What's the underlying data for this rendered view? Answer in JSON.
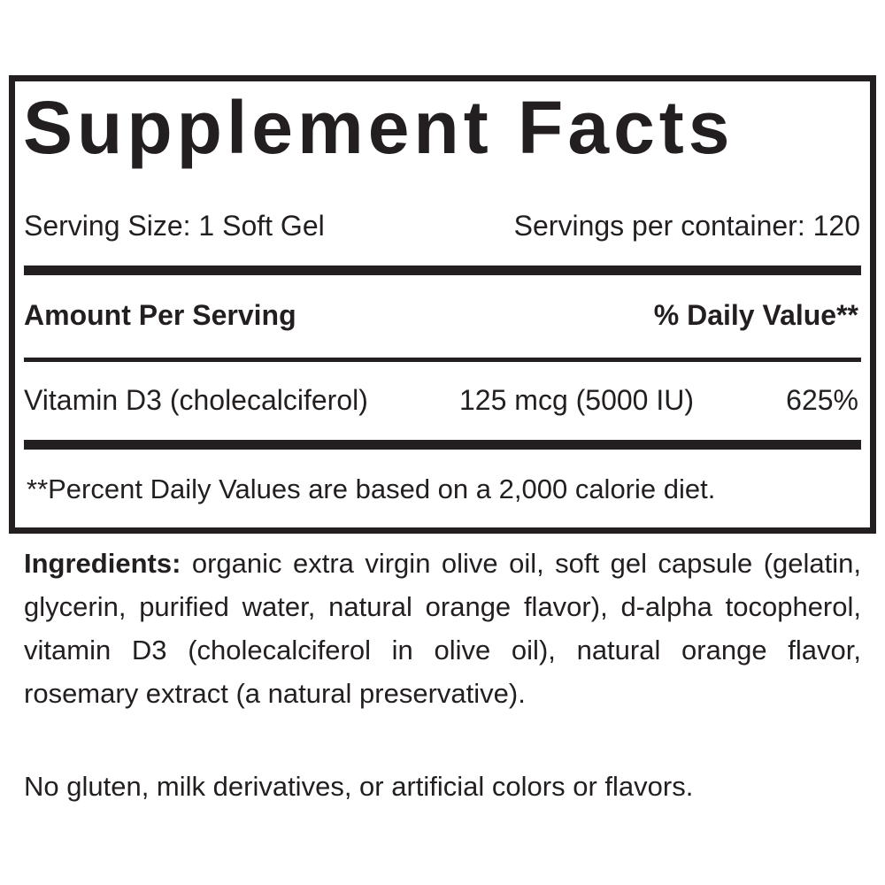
{
  "label": {
    "title": "Supplement Facts",
    "serving_size": "Serving Size: 1 Soft Gel",
    "servings_per_container": "Servings per container: 120",
    "amount_header": "Amount Per Serving",
    "dv_header": "% Daily Value**",
    "nutrients": [
      {
        "name": "Vitamin D3 (cholecalciferol)",
        "amount": "125 mcg (5000 IU)",
        "dv": "625%"
      }
    ],
    "footnote": "**Percent Daily Values are based on a 2,000 calorie diet."
  },
  "ingredients": {
    "label": "Ingredients:",
    "text": " organic extra virgin olive oil, soft gel capsule (gelatin, glycerin, purified water, natural orange flavor), d-alpha tocopherol, vitamin D3 (cholecalciferol in olive oil), natural orange flavor, rosemary extract (a natural preservative).",
    "note": "No gluten, milk derivatives, or artificial colors or flavors."
  },
  "colors": {
    "ink": "#231f20",
    "background": "#ffffff"
  }
}
